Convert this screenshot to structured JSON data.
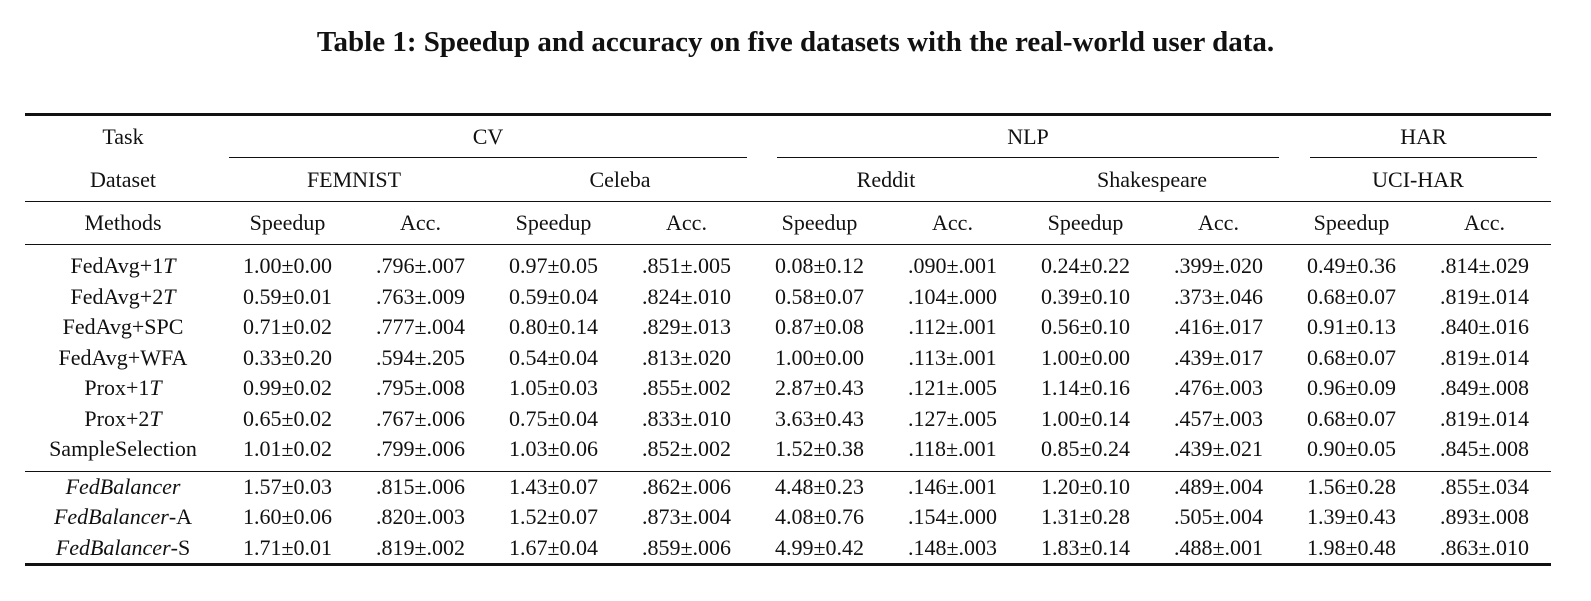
{
  "caption": "Table 1: Speedup and accuracy on five datasets with the real-world user data.",
  "header": {
    "task_label": "Task",
    "tasks": [
      "CV",
      "NLP",
      "HAR"
    ],
    "dataset_label": "Dataset",
    "datasets": [
      "FEMNIST",
      "Celeba",
      "Reddit",
      "Shakespeare",
      "UCI-HAR"
    ],
    "methods_label": "Methods",
    "metric_speedup": "Speedup",
    "metric_acc": "Acc."
  },
  "rows": [
    {
      "method": "FedAvg+1",
      "method_sym": "T",
      "cells": [
        "1.00±0.00",
        ".796±.007",
        "0.97±0.05",
        ".851±.005",
        "0.08±0.12",
        ".090±.001",
        "0.24±0.22",
        ".399±.020",
        "0.49±0.36",
        ".814±.029"
      ]
    },
    {
      "method": "FedAvg+2",
      "method_sym": "T",
      "cells": [
        "0.59±0.01",
        ".763±.009",
        "0.59±0.04",
        ".824±.010",
        "0.58±0.07",
        ".104±.000",
        "0.39±0.10",
        ".373±.046",
        "0.68±0.07",
        ".819±.014"
      ]
    },
    {
      "method": "FedAvg+SPC",
      "method_sym": "",
      "cells": [
        "0.71±0.02",
        ".777±.004",
        "0.80±0.14",
        ".829±.013",
        "0.87±0.08",
        ".112±.001",
        "0.56±0.10",
        ".416±.017",
        "0.91±0.13",
        ".840±.016"
      ]
    },
    {
      "method": "FedAvg+WFA",
      "method_sym": "",
      "cells": [
        "0.33±0.20",
        ".594±.205",
        "0.54±0.04",
        ".813±.020",
        "1.00±0.00",
        ".113±.001",
        "1.00±0.00",
        ".439±.017",
        "0.68±0.07",
        ".819±.014"
      ]
    },
    {
      "method": "Prox+1",
      "method_sym": "T",
      "cells": [
        "0.99±0.02",
        ".795±.008",
        "1.05±0.03",
        ".855±.002",
        "2.87±0.43",
        ".121±.005",
        "1.14±0.16",
        ".476±.003",
        "0.96±0.09",
        ".849±.008"
      ]
    },
    {
      "method": "Prox+2",
      "method_sym": "T",
      "cells": [
        "0.65±0.02",
        ".767±.006",
        "0.75±0.04",
        ".833±.010",
        "3.63±0.43",
        ".127±.005",
        "1.00±0.14",
        ".457±.003",
        "0.68±0.07",
        ".819±.014"
      ]
    },
    {
      "method": "SampleSelection",
      "method_sym": "",
      "cells": [
        "1.01±0.02",
        ".799±.006",
        "1.03±0.06",
        ".852±.002",
        "1.52±0.38",
        ".118±.001",
        "0.85±0.24",
        ".439±.021",
        "0.90±0.05",
        ".845±.008"
      ]
    }
  ],
  "ours_rows": [
    {
      "method_it": "FedBalancer",
      "method_suffix": "",
      "cells": [
        "1.57±0.03",
        ".815±.006",
        "1.43±0.07",
        ".862±.006",
        "4.48±0.23",
        ".146±.001",
        "1.20±0.10",
        ".489±.004",
        "1.56±0.28",
        ".855±.034"
      ],
      "bold": [
        false,
        false,
        false,
        false,
        false,
        false,
        false,
        false,
        false,
        false
      ]
    },
    {
      "method_it": "FedBalancer",
      "method_suffix": "-A",
      "cells": [
        "1.60±0.06",
        ".820±.003",
        "1.52±0.07",
        ".873±.004",
        "4.08±0.76",
        ".154±.000",
        "1.31±0.28",
        ".505±.004",
        "1.39±0.43",
        ".893±.008"
      ],
      "bold": [
        false,
        true,
        false,
        true,
        false,
        true,
        false,
        true,
        false,
        true
      ]
    },
    {
      "method_it": "FedBalancer",
      "method_suffix": "-S",
      "cells": [
        "1.71±0.01",
        ".819±.002",
        "1.67±0.04",
        ".859±.006",
        "4.99±0.42",
        ".148±.003",
        "1.83±0.14",
        ".488±.001",
        "1.98±0.48",
        ".863±.010"
      ],
      "bold": [
        true,
        false,
        true,
        false,
        true,
        false,
        true,
        false,
        true,
        false
      ]
    }
  ]
}
